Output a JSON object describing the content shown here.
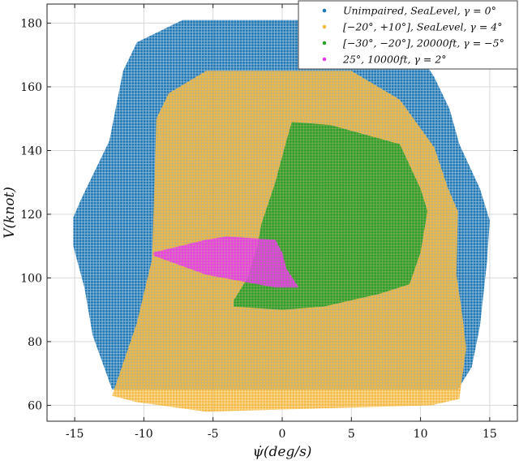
{
  "chart_data": {
    "type": "scatter",
    "title": "",
    "xlabel": "ψ̇(deg/s)",
    "ylabel": "V(knot)",
    "xlim": [
      -17,
      17
    ],
    "ylim": [
      55,
      186
    ],
    "xticks": [
      "-15",
      "-10",
      "-5",
      "0",
      "5",
      "10",
      "15"
    ],
    "yticks": [
      "60",
      "80",
      "100",
      "120",
      "140",
      "160",
      "180"
    ],
    "xtick_values": [
      -15,
      -10,
      -5,
      0,
      5,
      10,
      15
    ],
    "ytick_values": [
      60,
      80,
      100,
      120,
      140,
      160,
      180
    ],
    "grid": true,
    "legend_position": "top-right",
    "marker": "dense dots",
    "series": [
      {
        "name": "Unimpaired, SeaLevel, γ = 0°",
        "color": "#1f77b4",
        "boundary": [
          [
            -12.3,
            65
          ],
          [
            -13.7,
            82
          ],
          [
            -14.3,
            97
          ],
          [
            -15.1,
            110
          ],
          [
            -15.1,
            119
          ],
          [
            -14.5,
            125
          ],
          [
            -12.5,
            143
          ],
          [
            -11.5,
            165
          ],
          [
            -10.5,
            174
          ],
          [
            -7.2,
            181
          ],
          [
            6.5,
            181
          ],
          [
            9.5,
            173
          ],
          [
            11,
            163
          ],
          [
            12.1,
            153
          ],
          [
            12.8,
            142
          ],
          [
            14.3,
            128
          ],
          [
            15,
            118
          ],
          [
            14.8,
            105
          ],
          [
            14.3,
            85
          ],
          [
            13.7,
            72
          ],
          [
            12.7,
            65
          ]
        ]
      },
      {
        "name": "[−20°, +10°], SeaLevel, γ = 4°",
        "color": "#f5b942",
        "boundary": [
          [
            -12.3,
            63
          ],
          [
            -10.5,
            86
          ],
          [
            -9.4,
            106
          ],
          [
            -9.1,
            150
          ],
          [
            -8.2,
            158
          ],
          [
            -5.5,
            165
          ],
          [
            5,
            165
          ],
          [
            8.5,
            156
          ],
          [
            11,
            141
          ],
          [
            12,
            128
          ],
          [
            12.7,
            121
          ],
          [
            12.6,
            101
          ],
          [
            13,
            89
          ],
          [
            13.3,
            78
          ],
          [
            12.8,
            62
          ],
          [
            10.8,
            60
          ],
          [
            -5.5,
            58
          ],
          [
            -10.5,
            61
          ]
        ]
      },
      {
        "name": "[−30°, −20°], 20000ft, γ = −5°",
        "color": "#2ca02c",
        "boundary": [
          [
            -3.5,
            93
          ],
          [
            -2.5,
            100
          ],
          [
            -1.8,
            110
          ],
          [
            -1.5,
            117
          ],
          [
            -0.5,
            130
          ],
          [
            0.3,
            143
          ],
          [
            0.7,
            149
          ],
          [
            3.5,
            148
          ],
          [
            8.5,
            142
          ],
          [
            10,
            128
          ],
          [
            10.5,
            121
          ],
          [
            10,
            108
          ],
          [
            9.2,
            98
          ],
          [
            7,
            95
          ],
          [
            3,
            91
          ],
          [
            0,
            90
          ],
          [
            -3.5,
            91
          ]
        ]
      },
      {
        "name": "25°, 10000ft, γ = 2°",
        "color": "#e83ee8",
        "boundary": [
          [
            -9.3,
            108
          ],
          [
            -5.5,
            112
          ],
          [
            -4,
            113
          ],
          [
            -0.5,
            112
          ],
          [
            0,
            108
          ],
          [
            0.3,
            103
          ],
          [
            1.2,
            97
          ],
          [
            -0.5,
            97
          ],
          [
            -3,
            99
          ],
          [
            -5.5,
            101
          ],
          [
            -9.3,
            107
          ]
        ]
      }
    ]
  }
}
